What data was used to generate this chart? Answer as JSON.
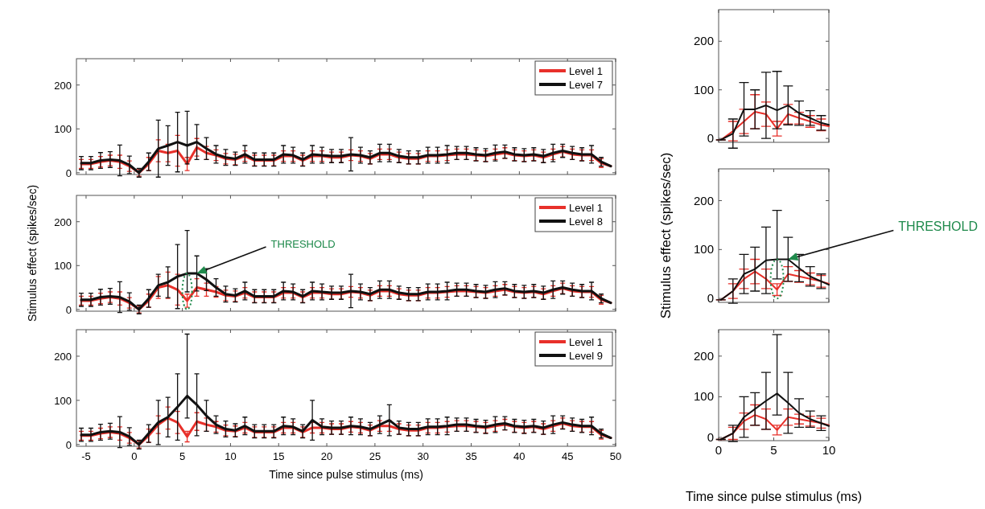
{
  "chart_data": [
    {
      "type": "line",
      "xlim": [
        -6,
        50
      ],
      "xticks": [
        -5,
        0,
        5,
        10,
        15,
        20,
        25,
        30,
        35,
        40,
        45,
        50
      ],
      "ylim": [
        -4,
        260
      ],
      "yticks": [
        0,
        100,
        200
      ],
      "tick_labels": "y",
      "legend": "top right",
      "x": [
        -5.5,
        -4.5,
        -3.5,
        -2.5,
        -1.5,
        -0.5,
        0.5,
        1.5,
        2.5,
        3.5,
        4.5,
        5.5,
        6.5,
        7.5,
        8.5,
        9.5,
        10.5,
        11.5,
        12.5,
        13.5,
        14.5,
        15.5,
        16.5,
        17.5,
        18.5,
        19.5,
        20.5,
        21.5,
        22.5,
        23.5,
        24.5,
        25.5,
        26.5,
        27.5,
        28.5,
        29.5,
        30.5,
        31.5,
        32.5,
        33.5,
        34.5,
        35.5,
        36.5,
        37.5,
        38.5,
        39.5,
        40.5,
        41.5,
        42.5,
        43.5,
        44.5,
        45.5,
        46.5,
        47.5,
        48.5,
        49.5
      ],
      "series": [
        {
          "name": "Level 1",
          "color": "#e8302a",
          "values": [
            20,
            20,
            25,
            28,
            25,
            15,
            0,
            20,
            50,
            45,
            50,
            20,
            58,
            45,
            40,
            32,
            30,
            38,
            28,
            28,
            28,
            38,
            38,
            28,
            38,
            38,
            35,
            35,
            40,
            38,
            32,
            42,
            42,
            35,
            32,
            32,
            38,
            38,
            40,
            42,
            42,
            40,
            38,
            42,
            45,
            40,
            38,
            40,
            35,
            42,
            48,
            42,
            40,
            40,
            22,
            15
          ],
          "errors": [
            10,
            10,
            12,
            12,
            15,
            12,
            8,
            15,
            25,
            20,
            35,
            15,
            20,
            15,
            12,
            12,
            12,
            12,
            12,
            12,
            12,
            12,
            12,
            12,
            12,
            12,
            12,
            12,
            12,
            12,
            12,
            12,
            12,
            12,
            12,
            12,
            12,
            12,
            12,
            12,
            12,
            12,
            12,
            12,
            12,
            12,
            12,
            12,
            12,
            12,
            12,
            12,
            12,
            12,
            10,
            null
          ]
        },
        {
          "name": "Level 7",
          "color": "#111111",
          "values": [
            22,
            22,
            28,
            30,
            28,
            18,
            0,
            25,
            55,
            62,
            70,
            62,
            70,
            55,
            42,
            35,
            32,
            42,
            30,
            30,
            30,
            42,
            40,
            30,
            42,
            40,
            38,
            38,
            42,
            40,
            35,
            45,
            45,
            38,
            35,
            35,
            40,
            40,
            42,
            45,
            45,
            42,
            40,
            45,
            48,
            42,
            40,
            42,
            38,
            45,
            50,
            45,
            42,
            42,
            25,
            15
          ],
          "errors": [
            15,
            15,
            18,
            18,
            35,
            20,
            10,
            20,
            65,
            45,
            68,
            [
              20,
              140
            ],
            40,
            25,
            20,
            18,
            15,
            20,
            15,
            15,
            15,
            20,
            18,
            15,
            20,
            18,
            15,
            15,
            38,
            18,
            15,
            20,
            20,
            15,
            15,
            15,
            18,
            18,
            20,
            15,
            15,
            15,
            15,
            18,
            15,
            15,
            15,
            15,
            15,
            20,
            15,
            15,
            15,
            20,
            10,
            null
          ]
        }
      ]
    },
    {
      "type": "line",
      "xlim": [
        -6,
        50
      ],
      "xticks": [
        -5,
        0,
        5,
        10,
        15,
        20,
        25,
        30,
        35,
        40,
        45,
        50
      ],
      "ylim": [
        -4,
        260
      ],
      "yticks": [
        0,
        100,
        200
      ],
      "tick_labels": "y",
      "legend": "top right",
      "ylabel": "Stimulus effect (spikes/sec)",
      "annotations": [
        {
          "text": "THRESHOLD",
          "x": 6.5,
          "y": 82
        }
      ],
      "x": [
        -5.5,
        -4.5,
        -3.5,
        -2.5,
        -1.5,
        -0.5,
        0.5,
        1.5,
        2.5,
        3.5,
        4.5,
        5.5,
        6.5,
        7.5,
        8.5,
        9.5,
        10.5,
        11.5,
        12.5,
        13.5,
        14.5,
        15.5,
        16.5,
        17.5,
        18.5,
        19.5,
        20.5,
        21.5,
        22.5,
        23.5,
        24.5,
        25.5,
        26.5,
        27.5,
        28.5,
        29.5,
        30.5,
        31.5,
        32.5,
        33.5,
        34.5,
        35.5,
        36.5,
        37.5,
        38.5,
        39.5,
        40.5,
        41.5,
        42.5,
        43.5,
        44.5,
        45.5,
        46.5,
        47.5,
        48.5,
        49.5
      ],
      "series": [
        {
          "name": "Level 1",
          "color": "#e8302a",
          "values": [
            20,
            20,
            25,
            28,
            25,
            15,
            0,
            20,
            50,
            55,
            45,
            20,
            50,
            45,
            40,
            32,
            30,
            38,
            28,
            28,
            28,
            38,
            38,
            28,
            38,
            38,
            35,
            35,
            40,
            38,
            32,
            42,
            42,
            35,
            32,
            32,
            38,
            38,
            40,
            42,
            42,
            40,
            38,
            42,
            45,
            40,
            38,
            40,
            35,
            42,
            48,
            42,
            40,
            40,
            22,
            15
          ],
          "errors": [
            10,
            10,
            12,
            12,
            15,
            12,
            8,
            15,
            25,
            30,
            35,
            15,
            20,
            15,
            12,
            12,
            12,
            12,
            12,
            12,
            12,
            12,
            12,
            12,
            12,
            12,
            12,
            12,
            12,
            12,
            12,
            12,
            12,
            12,
            12,
            12,
            12,
            12,
            12,
            12,
            12,
            12,
            12,
            12,
            12,
            12,
            12,
            12,
            12,
            12,
            12,
            12,
            12,
            12,
            10,
            null
          ]
        },
        {
          "name": "Level 8",
          "color": "#111111",
          "values": [
            22,
            22,
            28,
            30,
            28,
            18,
            0,
            25,
            55,
            62,
            75,
            82,
            82,
            68,
            50,
            35,
            32,
            42,
            30,
            30,
            30,
            42,
            40,
            30,
            42,
            40,
            38,
            38,
            42,
            40,
            35,
            45,
            45,
            38,
            35,
            35,
            40,
            40,
            42,
            45,
            45,
            42,
            40,
            45,
            48,
            42,
            40,
            42,
            38,
            45,
            50,
            45,
            42,
            42,
            25,
            15
          ],
          "errors": [
            15,
            15,
            18,
            18,
            35,
            20,
            10,
            20,
            25,
            35,
            73,
            [
              40,
              180
            ],
            40,
            25,
            20,
            18,
            15,
            20,
            15,
            15,
            15,
            20,
            18,
            15,
            20,
            18,
            15,
            15,
            38,
            18,
            15,
            20,
            20,
            15,
            15,
            15,
            18,
            18,
            20,
            15,
            15,
            15,
            15,
            18,
            15,
            15,
            15,
            15,
            15,
            20,
            15,
            15,
            15,
            20,
            10,
            null
          ]
        }
      ]
    },
    {
      "type": "line",
      "xlim": [
        -6,
        50
      ],
      "xticks": [
        -5,
        0,
        5,
        10,
        15,
        20,
        25,
        30,
        35,
        40,
        45,
        50
      ],
      "ylim": [
        -4,
        260
      ],
      "yticks": [
        0,
        100,
        200
      ],
      "legend": "top right",
      "xlabel": "Time since pulse stimulus (ms)",
      "x": [
        -5.5,
        -4.5,
        -3.5,
        -2.5,
        -1.5,
        -0.5,
        0.5,
        1.5,
        2.5,
        3.5,
        4.5,
        5.5,
        6.5,
        7.5,
        8.5,
        9.5,
        10.5,
        11.5,
        12.5,
        13.5,
        14.5,
        15.5,
        16.5,
        17.5,
        18.5,
        19.5,
        20.5,
        21.5,
        22.5,
        23.5,
        24.5,
        25.5,
        26.5,
        27.5,
        28.5,
        29.5,
        30.5,
        31.5,
        32.5,
        33.5,
        34.5,
        35.5,
        36.5,
        37.5,
        38.5,
        39.5,
        40.5,
        41.5,
        42.5,
        43.5,
        44.5,
        45.5,
        46.5,
        47.5,
        48.5,
        49.5
      ],
      "series": [
        {
          "name": "Level 1",
          "color": "#e8302a",
          "values": [
            20,
            20,
            25,
            28,
            25,
            15,
            0,
            20,
            45,
            60,
            50,
            18,
            52,
            45,
            40,
            32,
            30,
            38,
            28,
            28,
            28,
            38,
            38,
            28,
            38,
            38,
            35,
            35,
            40,
            38,
            32,
            42,
            42,
            35,
            32,
            32,
            38,
            38,
            40,
            42,
            42,
            40,
            38,
            42,
            45,
            40,
            38,
            40,
            35,
            42,
            48,
            42,
            40,
            40,
            22,
            15
          ],
          "errors": [
            10,
            10,
            12,
            12,
            15,
            12,
            8,
            15,
            20,
            25,
            25,
            12,
            20,
            15,
            12,
            12,
            12,
            12,
            12,
            12,
            12,
            12,
            12,
            12,
            12,
            12,
            12,
            12,
            12,
            12,
            12,
            12,
            12,
            12,
            12,
            12,
            12,
            12,
            12,
            12,
            12,
            12,
            12,
            12,
            12,
            12,
            12,
            12,
            12,
            12,
            12,
            12,
            12,
            12,
            10,
            null
          ]
        },
        {
          "name": "Level 9",
          "color": "#111111",
          "values": [
            22,
            22,
            28,
            30,
            28,
            18,
            0,
            25,
            50,
            62,
            85,
            110,
            90,
            65,
            45,
            35,
            32,
            42,
            30,
            30,
            30,
            42,
            40,
            30,
            55,
            40,
            38,
            38,
            42,
            40,
            35,
            45,
            55,
            38,
            35,
            35,
            40,
            40,
            42,
            45,
            45,
            42,
            40,
            45,
            48,
            42,
            40,
            42,
            38,
            45,
            50,
            45,
            42,
            42,
            25,
            15
          ],
          "errors": [
            15,
            15,
            18,
            18,
            35,
            20,
            10,
            20,
            50,
            45,
            75,
            [
              60,
              250
            ],
            70,
            35,
            20,
            18,
            15,
            20,
            15,
            15,
            15,
            20,
            18,
            15,
            45,
            18,
            15,
            15,
            20,
            18,
            15,
            20,
            35,
            15,
            15,
            15,
            18,
            18,
            20,
            15,
            15,
            15,
            15,
            18,
            15,
            15,
            15,
            15,
            15,
            20,
            15,
            15,
            15,
            20,
            10,
            null
          ]
        }
      ]
    },
    {
      "type": "line",
      "xlim": [
        0,
        10
      ],
      "xticks": [
        0,
        5,
        10
      ],
      "ylim": [
        -8,
        265
      ],
      "yticks": [
        0,
        100,
        200
      ],
      "tick_labels": "y",
      "x": [
        0.2,
        1.3,
        2.3,
        3.3,
        4.3,
        5.3,
        6.3,
        7.3,
        8.3,
        9.3,
        10
      ],
      "series": [
        {
          "color": "#e8302a",
          "values": [
            -3,
            15,
            35,
            55,
            50,
            20,
            50,
            42,
            35,
            28,
            25
          ],
          "errors": [
            0,
            20,
            25,
            35,
            25,
            15,
            20,
            12,
            12,
            12,
            null
          ]
        },
        {
          "color": "#111111",
          "values": [
            -3,
            10,
            60,
            60,
            68,
            58,
            68,
            52,
            42,
            32,
            28
          ],
          "errors": [
            0,
            30,
            55,
            40,
            68,
            [
              20,
              138
            ],
            40,
            25,
            15,
            15,
            null
          ]
        }
      ]
    },
    {
      "type": "line",
      "xlim": [
        0,
        10
      ],
      "xticks": [
        0,
        5,
        10
      ],
      "ylim": [
        -8,
        265
      ],
      "yticks": [
        0,
        100,
        200
      ],
      "tick_labels": "y",
      "ylabel": "Stimulus effect (spikes/sec)",
      "annotations": [
        {
          "text": "THRESHOLD",
          "x": 6.3,
          "y": 80
        }
      ],
      "x": [
        0.2,
        1.3,
        2.3,
        3.3,
        4.3,
        5.3,
        6.3,
        7.3,
        8.3,
        9.3,
        10
      ],
      "series": [
        {
          "color": "#e8302a",
          "values": [
            -3,
            15,
            40,
            55,
            40,
            18,
            50,
            45,
            40,
            35,
            30
          ],
          "errors": [
            0,
            15,
            20,
            25,
            20,
            12,
            15,
            12,
            12,
            12,
            null
          ]
        },
        {
          "color": "#111111",
          "values": [
            -3,
            15,
            50,
            60,
            78,
            80,
            80,
            62,
            45,
            35,
            28
          ],
          "errors": [
            0,
            25,
            40,
            45,
            68,
            [
              40,
              180
            ],
            45,
            28,
            20,
            15,
            null
          ]
        }
      ]
    },
    {
      "type": "line",
      "xlim": [
        0,
        10
      ],
      "xticks": [
        0,
        5,
        10
      ],
      "ylim": [
        -8,
        265
      ],
      "yticks": [
        0,
        100,
        200
      ],
      "xlabel": "Time since pulse stimulus (ms)",
      "x": [
        0.2,
        1.3,
        2.3,
        3.3,
        4.3,
        5.3,
        6.3,
        7.3,
        8.3,
        9.3,
        10
      ],
      "series": [
        {
          "color": "#e8302a",
          "values": [
            -5,
            10,
            40,
            55,
            45,
            18,
            50,
            45,
            40,
            35,
            30
          ],
          "errors": [
            0,
            15,
            20,
            25,
            25,
            12,
            20,
            12,
            12,
            12,
            null
          ]
        },
        {
          "color": "#111111",
          "values": [
            -5,
            10,
            50,
            70,
            90,
            108,
            85,
            60,
            45,
            35,
            28
          ],
          "errors": [
            0,
            20,
            50,
            40,
            70,
            [
              55,
              253
            ],
            75,
            35,
            20,
            18,
            null
          ]
        }
      ]
    }
  ]
}
